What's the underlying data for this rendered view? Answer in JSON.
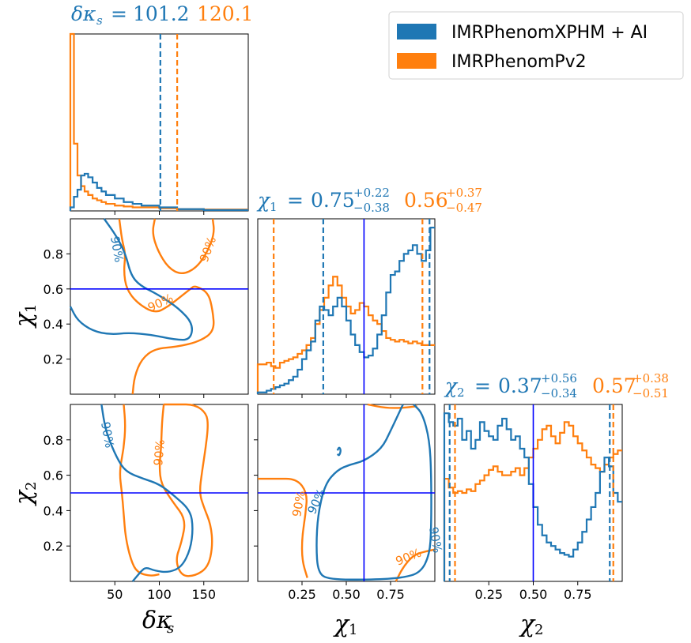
{
  "colors": {
    "blue": "#1f77b4",
    "orange": "#ff7f0e",
    "truth": "#0000ff",
    "axis": "#000000"
  },
  "chart_data": {
    "type": "corner",
    "legend": {
      "position": "top-right",
      "entries": [
        {
          "label": "IMRPhenomXPHM + AI",
          "color": "#1f77b4"
        },
        {
          "label": "IMRPhenomPv2",
          "color": "#ff7f0e"
        }
      ]
    },
    "parameters": [
      {
        "key": "dks",
        "symbol": "δκ",
        "subscript": "s",
        "range": [
          0,
          200
        ],
        "ticks": [
          50,
          100,
          150
        ],
        "tick_labels": [
          "50",
          "100",
          "150"
        ]
      },
      {
        "key": "chi1",
        "symbol": "χ",
        "subscript": "1",
        "range": [
          0,
          1
        ],
        "ticks": [
          0.25,
          0.5,
          0.75
        ],
        "tick_labels": [
          "0.25",
          "0.50",
          "0.75"
        ],
        "y_ticks": [
          0.2,
          0.4,
          0.6,
          0.8
        ],
        "y_tick_labels": [
          "0.2",
          "0.4",
          "0.6",
          "0.8"
        ],
        "truth": 0.6
      },
      {
        "key": "chi2",
        "symbol": "χ",
        "subscript": "2",
        "range": [
          0,
          1
        ],
        "ticks": [
          0.25,
          0.5,
          0.75
        ],
        "tick_labels": [
          "0.25",
          "0.50",
          "0.75"
        ],
        "y_ticks": [
          0.2,
          0.4,
          0.6,
          0.8
        ],
        "y_tick_labels": [
          "0.2",
          "0.4",
          "0.6",
          "0.8"
        ],
        "truth": 0.5
      }
    ],
    "diagonal_titles": [
      {
        "param": "δκ",
        "sub": "s",
        "blue_median": "101.2",
        "orange_median": "120.1"
      },
      {
        "param": "χ",
        "sub": "1",
        "blue_median": "0.75",
        "blue_plus": "+0.22",
        "blue_minus": "−0.38",
        "orange_median": "0.56",
        "orange_plus": "+0.37",
        "orange_minus": "−0.47"
      },
      {
        "param": "χ",
        "sub": "2",
        "blue_median": "0.37",
        "blue_plus": "+0.56",
        "blue_minus": "−0.34",
        "orange_median": "0.57",
        "orange_plus": "+0.38",
        "orange_minus": "−0.51"
      }
    ],
    "hist_dks": {
      "bins": [
        0,
        4,
        8,
        12,
        16,
        20,
        25,
        30,
        35,
        40,
        50,
        60,
        70,
        80,
        100,
        120,
        150,
        200
      ],
      "blue": [
        0.02,
        0.08,
        0.12,
        0.2,
        0.21,
        0.19,
        0.16,
        0.13,
        0.11,
        0.09,
        0.07,
        0.05,
        0.04,
        0.03,
        0.02,
        0.01,
        0.005
      ],
      "orange": [
        1.0,
        0.38,
        0.2,
        0.14,
        0.11,
        0.09,
        0.07,
        0.06,
        0.05,
        0.04,
        0.03,
        0.025,
        0.02,
        0.02,
        0.015,
        0.01,
        0.008
      ],
      "blue_quantiles": [
        101.2,
        101.2
      ],
      "orange_quantiles": [
        120.1,
        120.1
      ]
    },
    "hist_chi1": {
      "bin_start": 0,
      "bin_step": 0.025,
      "blue": [
        0.01,
        0.01,
        0.02,
        0.03,
        0.04,
        0.05,
        0.06,
        0.08,
        0.1,
        0.14,
        0.2,
        0.25,
        0.3,
        0.42,
        0.5,
        0.48,
        0.45,
        0.5,
        0.55,
        0.5,
        0.42,
        0.34,
        0.28,
        0.24,
        0.21,
        0.22,
        0.26,
        0.34,
        0.45,
        0.58,
        0.68,
        0.7,
        0.76,
        0.8,
        0.82,
        0.85,
        0.8,
        0.76,
        0.82,
        0.95
      ],
      "orange": [
        0.17,
        0.17,
        0.18,
        0.16,
        0.15,
        0.18,
        0.19,
        0.2,
        0.21,
        0.23,
        0.25,
        0.28,
        0.32,
        0.4,
        0.48,
        0.55,
        0.62,
        0.67,
        0.62,
        0.55,
        0.5,
        0.46,
        0.48,
        0.52,
        0.5,
        0.45,
        0.42,
        0.4,
        0.36,
        0.32,
        0.31,
        0.3,
        0.31,
        0.3,
        0.29,
        0.3,
        0.29,
        0.28,
        0.28,
        0.28
      ],
      "blue_quantiles": [
        0.37,
        0.97
      ],
      "orange_quantiles": [
        0.09,
        0.93
      ]
    },
    "hist_chi2": {
      "bin_start": 0,
      "bin_step": 0.025,
      "blue": [
        0.95,
        0.9,
        0.88,
        0.92,
        0.8,
        0.85,
        0.75,
        0.8,
        0.9,
        0.85,
        0.82,
        0.8,
        0.88,
        0.92,
        0.86,
        0.8,
        0.82,
        0.75,
        0.7,
        0.55,
        0.42,
        0.32,
        0.26,
        0.22,
        0.2,
        0.18,
        0.16,
        0.15,
        0.14,
        0.18,
        0.22,
        0.28,
        0.35,
        0.42,
        0.5,
        0.62,
        0.7,
        0.65,
        0.5,
        0.45
      ],
      "orange": [
        0.58,
        0.53,
        0.5,
        0.51,
        0.5,
        0.52,
        0.51,
        0.55,
        0.57,
        0.6,
        0.63,
        0.65,
        0.62,
        0.6,
        0.6,
        0.62,
        0.64,
        0.6,
        0.64,
        0.7,
        0.75,
        0.8,
        0.86,
        0.88,
        0.82,
        0.78,
        0.84,
        0.9,
        0.88,
        0.82,
        0.78,
        0.74,
        0.7,
        0.66,
        0.64,
        0.62,
        0.66,
        0.7,
        0.72,
        0.74
      ],
      "blue_quantiles": [
        0.03,
        0.93
      ],
      "orange_quantiles": [
        0.06,
        0.95
      ]
    },
    "contour_label": "90%",
    "contours": {
      "chi1_vs_dks": {
        "blue": [
          [
            0,
            0.5
          ],
          [
            8,
            0.42
          ],
          [
            25,
            0.36
          ],
          [
            45,
            0.34
          ],
          [
            65,
            0.35
          ],
          [
            90,
            0.34
          ],
          [
            118,
            0.31
          ],
          [
            135,
            0.31
          ],
          [
            138,
            0.4
          ],
          [
            122,
            0.49
          ],
          [
            98,
            0.57
          ],
          [
            78,
            0.62
          ],
          [
            68,
            0.68
          ],
          [
            62,
            0.8
          ],
          [
            52,
            0.9
          ],
          [
            38,
            1.0
          ]
        ],
        "orange_a": [
          [
            55,
            1.0
          ],
          [
            58,
            0.88
          ],
          [
            62,
            0.8
          ],
          [
            60,
            0.7
          ],
          [
            63,
            0.6
          ],
          [
            75,
            0.52
          ],
          [
            95,
            0.46
          ],
          [
            110,
            0.5
          ],
          [
            125,
            0.56
          ],
          [
            135,
            0.6
          ],
          [
            140,
            0.62
          ],
          [
            155,
            0.58
          ],
          [
            160,
            0.48
          ],
          [
            162,
            0.36
          ],
          [
            145,
            0.3
          ],
          [
            120,
            0.27
          ],
          [
            95,
            0.26
          ],
          [
            80,
            0.2
          ],
          [
            72,
            0.1
          ],
          [
            70,
            0.0
          ]
        ],
        "orange_b": [
          [
            95,
            1.0
          ],
          [
            92,
            0.92
          ],
          [
            98,
            0.82
          ],
          [
            110,
            0.72
          ],
          [
            125,
            0.68
          ],
          [
            142,
            0.72
          ],
          [
            155,
            0.82
          ],
          [
            162,
            0.92
          ],
          [
            160,
            1.0
          ]
        ]
      },
      "chi2_vs_dks": {
        "blue": [
          [
            35,
            1.0
          ],
          [
            38,
            0.9
          ],
          [
            42,
            0.82
          ],
          [
            52,
            0.7
          ],
          [
            62,
            0.62
          ],
          [
            82,
            0.58
          ],
          [
            100,
            0.55
          ],
          [
            118,
            0.48
          ],
          [
            135,
            0.4
          ],
          [
            138,
            0.3
          ],
          [
            135,
            0.18
          ],
          [
            125,
            0.08
          ],
          [
            110,
            0.05
          ],
          [
            95,
            0.06
          ],
          [
            85,
            0.08
          ],
          [
            80,
            0.06
          ],
          [
            75,
            0.03
          ],
          [
            70,
            0.0
          ]
        ],
        "orange_a": [
          [
            60,
            1.0
          ],
          [
            62,
            0.88
          ],
          [
            60,
            0.75
          ],
          [
            55,
            0.62
          ],
          [
            58,
            0.5
          ],
          [
            60,
            0.38
          ],
          [
            62,
            0.25
          ],
          [
            68,
            0.12
          ],
          [
            75,
            0.05
          ],
          [
            90,
            0.03
          ],
          [
            100,
            0.04
          ]
        ],
        "orange_b": [
          [
            105,
            1.0
          ],
          [
            103,
            0.9
          ],
          [
            102,
            0.75
          ],
          [
            100,
            0.65
          ],
          [
            102,
            0.55
          ],
          [
            115,
            0.45
          ],
          [
            130,
            0.35
          ],
          [
            125,
            0.22
          ],
          [
            118,
            0.12
          ],
          [
            125,
            0.03
          ],
          [
            140,
            0.03
          ],
          [
            155,
            0.08
          ],
          [
            160,
            0.2
          ],
          [
            158,
            0.32
          ],
          [
            150,
            0.42
          ],
          [
            145,
            0.5
          ],
          [
            148,
            0.62
          ],
          [
            152,
            0.75
          ],
          [
            155,
            0.88
          ],
          [
            153,
            0.95
          ],
          [
            140,
            1.0
          ],
          [
            120,
            1.0
          ],
          [
            105,
            1.0
          ]
        ]
      },
      "chi2_vs_chi1": {
        "blue_a": [
          [
            0.82,
            1.0
          ],
          [
            0.75,
            0.85
          ],
          [
            0.7,
            0.75
          ],
          [
            0.6,
            0.68
          ],
          [
            0.52,
            0.66
          ],
          [
            0.45,
            0.63
          ],
          [
            0.38,
            0.55
          ],
          [
            0.34,
            0.38
          ],
          [
            0.33,
            0.2
          ],
          [
            0.34,
            0.05
          ],
          [
            0.4,
            0.01
          ],
          [
            0.65,
            0.01
          ],
          [
            0.82,
            0.02
          ],
          [
            0.92,
            0.05
          ],
          [
            0.97,
            0.15
          ],
          [
            0.98,
            0.3
          ],
          [
            0.98,
            0.6
          ],
          [
            0.97,
            0.8
          ],
          [
            0.93,
            0.95
          ],
          [
            0.88,
            1.0
          ]
        ],
        "blue_b": [
          [
            0.45,
            0.74
          ],
          [
            0.46,
            0.76
          ],
          [
            0.47,
            0.74
          ],
          [
            0.46,
            0.71
          ],
          [
            0.45,
            0.72
          ]
        ],
        "orange_a": [
          [
            0.0,
            0.58
          ],
          [
            0.1,
            0.58
          ],
          [
            0.22,
            0.58
          ],
          [
            0.28,
            0.5
          ],
          [
            0.27,
            0.38
          ],
          [
            0.25,
            0.25
          ],
          [
            0.25,
            0.12
          ],
          [
            0.28,
            0.02
          ]
        ],
        "orange_b": [
          [
            0.78,
            0.0
          ],
          [
            0.82,
            0.08
          ],
          [
            0.88,
            0.15
          ],
          [
            0.95,
            0.17
          ],
          [
            1.0,
            0.18
          ]
        ],
        "orange_c": [
          [
            0.62,
            1.0
          ],
          [
            0.72,
            0.98
          ],
          [
            0.82,
            0.98
          ],
          [
            0.9,
            0.99
          ]
        ]
      }
    }
  }
}
